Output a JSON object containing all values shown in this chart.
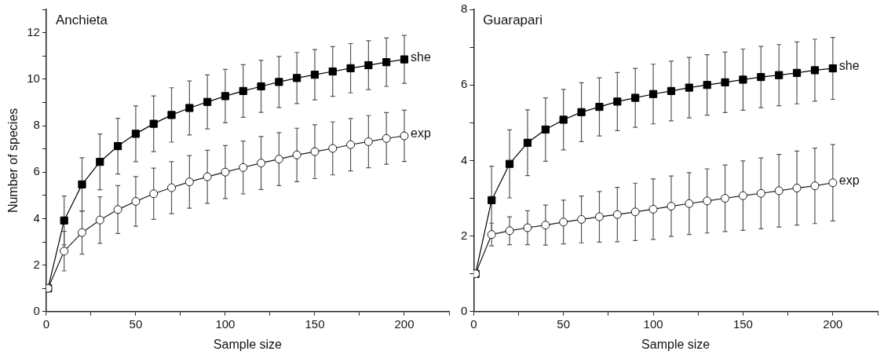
{
  "chart_data": [
    {
      "type": "line",
      "title": "Anchieta",
      "xlabel": "Sample size",
      "ylabel": "Number of species",
      "x": [
        1,
        10,
        20,
        30,
        40,
        50,
        60,
        70,
        80,
        90,
        100,
        110,
        120,
        130,
        140,
        150,
        160,
        170,
        180,
        190,
        200
      ],
      "xlim": [
        0,
        225
      ],
      "xticks": [
        0,
        {
          "value": 25,
          "label": null
        },
        50,
        {
          "value": 75,
          "label": null
        },
        100,
        {
          "value": 125,
          "label": null
        },
        150,
        {
          "value": 175,
          "label": null
        },
        200,
        {
          "value": 225,
          "label": null
        }
      ],
      "ylim": [
        0,
        13
      ],
      "yticks": [
        0,
        {
          "value": 1,
          "label": null
        },
        2,
        {
          "value": 3,
          "label": null
        },
        4,
        {
          "value": 5,
          "label": null
        },
        6,
        {
          "value": 7,
          "label": null
        },
        8,
        {
          "value": 9,
          "label": null
        },
        10,
        {
          "value": 11,
          "label": null
        },
        12,
        {
          "value": 13,
          "label": null
        }
      ],
      "grid": false,
      "legend": false,
      "series": [
        {
          "name": "she",
          "color": "#000000",
          "marker": "square",
          "values": [
            1,
            3.92,
            5.47,
            6.44,
            7.12,
            7.65,
            8.08,
            8.46,
            8.76,
            9.02,
            9.27,
            9.49,
            9.69,
            9.88,
            10.05,
            10.19,
            10.33,
            10.47,
            10.6,
            10.73,
            10.85
          ],
          "errors": [
            null,
            1.05,
            1.15,
            1.2,
            1.2,
            1.2,
            1.2,
            1.17,
            1.16,
            1.16,
            1.15,
            1.13,
            1.12,
            1.1,
            1.1,
            1.08,
            1.07,
            1.06,
            1.05,
            1.04,
            1.03
          ]
        },
        {
          "name": "exp",
          "color": "#1a1a1a",
          "marker": "circle",
          "values": [
            1,
            2.6,
            3.4,
            3.94,
            4.39,
            4.74,
            5.07,
            5.33,
            5.58,
            5.8,
            6.0,
            6.2,
            6.39,
            6.56,
            6.74,
            6.88,
            7.02,
            7.18,
            7.31,
            7.45,
            7.56
          ],
          "errors": [
            null,
            0.85,
            0.93,
            1.0,
            1.03,
            1.07,
            1.1,
            1.12,
            1.13,
            1.14,
            1.14,
            1.14,
            1.14,
            1.14,
            1.15,
            1.16,
            1.14,
            1.13,
            1.12,
            1.11,
            1.1
          ]
        }
      ]
    },
    {
      "type": "line",
      "title": "Guarapari",
      "xlabel": "Sample size",
      "x": [
        1,
        10,
        20,
        30,
        40,
        50,
        60,
        70,
        80,
        90,
        100,
        110,
        120,
        130,
        140,
        150,
        160,
        170,
        180,
        190,
        200
      ],
      "xlim": [
        0,
        225
      ],
      "xticks": [
        0,
        {
          "value": 25,
          "label": null
        },
        50,
        {
          "value": 75,
          "label": null
        },
        100,
        {
          "value": 125,
          "label": null
        },
        150,
        {
          "value": 175,
          "label": null
        },
        200,
        {
          "value": 225,
          "label": null
        }
      ],
      "ylim": [
        0,
        8
      ],
      "yticks": [
        0,
        {
          "value": 1,
          "label": null
        },
        2,
        {
          "value": 3,
          "label": null
        },
        4,
        {
          "value": 5,
          "label": null
        },
        6,
        {
          "value": 7,
          "label": null
        },
        8
      ],
      "grid": false,
      "legend": false,
      "series": [
        {
          "name": "she",
          "color": "#000000",
          "marker": "square",
          "values": [
            1,
            2.95,
            3.91,
            4.47,
            4.82,
            5.08,
            5.28,
            5.42,
            5.56,
            5.66,
            5.76,
            5.84,
            5.93,
            6.0,
            6.07,
            6.14,
            6.21,
            6.26,
            6.32,
            6.39,
            6.44
          ],
          "errors": [
            null,
            0.9,
            0.9,
            0.87,
            0.84,
            0.8,
            0.78,
            0.77,
            0.77,
            0.78,
            0.79,
            0.79,
            0.8,
            0.8,
            0.8,
            0.81,
            0.81,
            0.81,
            0.82,
            0.82,
            0.82
          ]
        },
        {
          "name": "exp",
          "color": "#1a1a1a",
          "marker": "circle",
          "values": [
            1,
            2.04,
            2.14,
            2.22,
            2.29,
            2.37,
            2.44,
            2.51,
            2.57,
            2.64,
            2.71,
            2.79,
            2.86,
            2.93,
            3.0,
            3.07,
            3.13,
            3.2,
            3.27,
            3.33,
            3.41
          ],
          "errors": [
            null,
            0.3,
            0.37,
            0.45,
            0.53,
            0.58,
            0.62,
            0.67,
            0.72,
            0.76,
            0.8,
            0.8,
            0.82,
            0.85,
            0.88,
            0.92,
            0.94,
            0.96,
            0.98,
            1.0,
            1.01
          ]
        }
      ]
    }
  ]
}
